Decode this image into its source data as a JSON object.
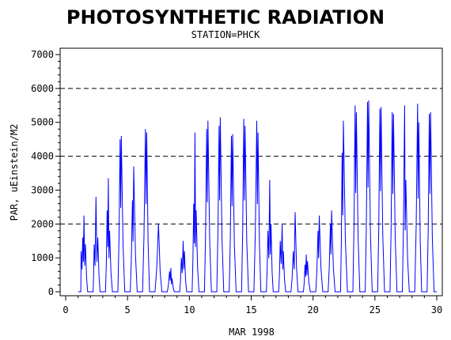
{
  "chart_data": {
    "type": "line",
    "title": "PHOTOSYNTHETIC RADIATION",
    "subtitle": "STATION=PHCK",
    "xlabel": "MAR 1998",
    "ylabel": "PAR, uEinstein/M2",
    "xlim": [
      0,
      30
    ],
    "ylim": [
      0,
      7000
    ],
    "xticks": [
      0,
      5,
      10,
      15,
      20,
      25,
      30
    ],
    "yticks": [
      0,
      1000,
      2000,
      3000,
      4000,
      5000,
      6000,
      7000
    ],
    "reference_lines": [
      2000,
      4000,
      6000
    ],
    "grid": false,
    "line_color": "#0000ff",
    "daily_peaks": [
      {
        "day": 1,
        "peaks": [
          [
            0.25,
            1200
          ],
          [
            0.38,
            1600
          ],
          [
            0.48,
            2250
          ],
          [
            0.6,
            1400
          ]
        ]
      },
      {
        "day": 2,
        "peaks": [
          [
            0.3,
            1400
          ],
          [
            0.45,
            2800
          ],
          [
            0.6,
            1600
          ]
        ]
      },
      {
        "day": 3,
        "peaks": [
          [
            0.35,
            2400
          ],
          [
            0.45,
            3350
          ],
          [
            0.55,
            1800
          ]
        ]
      },
      {
        "day": 4,
        "peaks": [
          [
            0.4,
            4500
          ],
          [
            0.5,
            4600
          ]
        ]
      },
      {
        "day": 5,
        "peaks": [
          [
            0.4,
            2700
          ],
          [
            0.5,
            3700
          ]
        ]
      },
      {
        "day": 6,
        "peaks": [
          [
            0.45,
            4800
          ],
          [
            0.55,
            4700
          ]
        ]
      },
      {
        "day": 7,
        "peaks": [
          [
            0.5,
            2000
          ]
        ]
      },
      {
        "day": 8,
        "peaks": [
          [
            0.4,
            600
          ],
          [
            0.5,
            700
          ],
          [
            0.6,
            400
          ]
        ]
      },
      {
        "day": 9,
        "peaks": [
          [
            0.35,
            1000
          ],
          [
            0.5,
            1500
          ],
          [
            0.6,
            1200
          ]
        ]
      },
      {
        "day": 10,
        "peaks": [
          [
            0.35,
            2600
          ],
          [
            0.45,
            4700
          ],
          [
            0.55,
            2400
          ]
        ]
      },
      {
        "day": 11,
        "peaks": [
          [
            0.4,
            4800
          ],
          [
            0.5,
            5050
          ]
        ]
      },
      {
        "day": 12,
        "peaks": [
          [
            0.4,
            4900
          ],
          [
            0.5,
            5150
          ]
        ]
      },
      {
        "day": 13,
        "peaks": [
          [
            0.4,
            4600
          ],
          [
            0.5,
            4650
          ]
        ]
      },
      {
        "day": 14,
        "peaks": [
          [
            0.4,
            5100
          ],
          [
            0.5,
            4900
          ]
        ]
      },
      {
        "day": 15,
        "peaks": [
          [
            0.45,
            5050
          ],
          [
            0.55,
            4700
          ]
        ]
      },
      {
        "day": 16,
        "peaks": [
          [
            0.35,
            1800
          ],
          [
            0.5,
            3300
          ],
          [
            0.6,
            2000
          ]
        ]
      },
      {
        "day": 17,
        "peaks": [
          [
            0.35,
            1500
          ],
          [
            0.5,
            2000
          ],
          [
            0.6,
            1200
          ]
        ]
      },
      {
        "day": 18,
        "peaks": [
          [
            0.4,
            1200
          ],
          [
            0.55,
            2350
          ]
        ]
      },
      {
        "day": 19,
        "peaks": [
          [
            0.35,
            800
          ],
          [
            0.45,
            1100
          ],
          [
            0.55,
            900
          ]
        ]
      },
      {
        "day": 20,
        "peaks": [
          [
            0.4,
            1800
          ],
          [
            0.5,
            2250
          ]
        ]
      },
      {
        "day": 21,
        "peaks": [
          [
            0.4,
            2000
          ],
          [
            0.5,
            2400
          ]
        ]
      },
      {
        "day": 22,
        "peaks": [
          [
            0.35,
            4100
          ],
          [
            0.45,
            5050
          ]
        ]
      },
      {
        "day": 23,
        "peaks": [
          [
            0.4,
            5500
          ],
          [
            0.5,
            5300
          ]
        ]
      },
      {
        "day": 24,
        "peaks": [
          [
            0.4,
            5600
          ],
          [
            0.5,
            5650
          ]
        ]
      },
      {
        "day": 25,
        "peaks": [
          [
            0.4,
            5400
          ],
          [
            0.5,
            5450
          ]
        ]
      },
      {
        "day": 26,
        "peaks": [
          [
            0.4,
            5300
          ],
          [
            0.5,
            5250
          ]
        ]
      },
      {
        "day": 27,
        "peaks": [
          [
            0.4,
            5500
          ],
          [
            0.5,
            3300
          ]
        ]
      },
      {
        "day": 28,
        "peaks": [
          [
            0.45,
            5550
          ],
          [
            0.55,
            5000
          ]
        ]
      },
      {
        "day": 29,
        "peaks": [
          [
            0.4,
            5250
          ],
          [
            0.5,
            5300
          ]
        ]
      }
    ]
  }
}
